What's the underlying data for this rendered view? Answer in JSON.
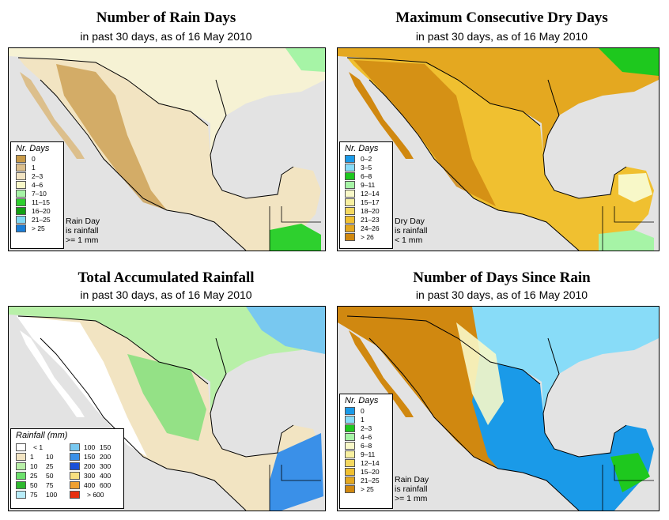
{
  "colors": {
    "sea": "#e3e3e3",
    "land_dry": "#c8a050",
    "border": "#000000"
  },
  "panels": {
    "rain_days": {
      "title": "Number of Rain Days",
      "subtitle": "in past 30 days, as of  16 May 2010",
      "legend_title": "Nr. Days",
      "classes": [
        {
          "label": "0",
          "color": "#c89a48"
        },
        {
          "label": "1",
          "color": "#dcbf8c"
        },
        {
          "label": "2–3",
          "color": "#f2e4c2"
        },
        {
          "label": "4–6",
          "color": "#f8f8c8"
        },
        {
          "label": "7–10",
          "color": "#a6f4a6"
        },
        {
          "label": "11–15",
          "color": "#2ed02e"
        },
        {
          "label": "16–20",
          "color": "#14a014"
        },
        {
          "label": "21–25",
          "color": "#80d8f4"
        },
        {
          "label": "> 25",
          "color": "#1a7ed8"
        }
      ],
      "note": [
        "Rain Day",
        "is rainfall",
        ">= 1 mm"
      ]
    },
    "dry_days": {
      "title": "Maximum Consecutive Dry Days",
      "subtitle": "in past 30 days, as of  16 May 2010",
      "legend_title": "Nr. Days",
      "classes": [
        {
          "label": "0–2",
          "color": "#1a9ae8"
        },
        {
          "label": "3–5",
          "color": "#88dcf8"
        },
        {
          "label": "6–8",
          "color": "#1ec81e"
        },
        {
          "label": "9–11",
          "color": "#a6f4a6"
        },
        {
          "label": "12–14",
          "color": "#f8f8c8"
        },
        {
          "label": "15–17",
          "color": "#f8f0a0"
        },
        {
          "label": "18–20",
          "color": "#f4d860"
        },
        {
          "label": "21–23",
          "color": "#f0c030"
        },
        {
          "label": "24–26",
          "color": "#e4a820"
        },
        {
          "label": "> 26",
          "color": "#d08810"
        }
      ],
      "note": [
        "Dry Day",
        "is rainfall",
        "< 1 mm"
      ]
    },
    "rainfall": {
      "title": "Total Accumulated Rainfall",
      "subtitle": "in past 30 days, as of  16 May 2010",
      "legend_title": "Rainfall (mm)",
      "classes_left": [
        {
          "from": "",
          "to": "< 1",
          "color": "#ffffff"
        },
        {
          "from": "1",
          "to": "10",
          "color": "#f2e4c2"
        },
        {
          "from": "10",
          "to": "25",
          "color": "#b8f0a8"
        },
        {
          "from": "25",
          "to": "50",
          "color": "#6ce06c"
        },
        {
          "from": "50",
          "to": "75",
          "color": "#2eb82e"
        },
        {
          "from": "75",
          "to": "100",
          "color": "#b8ecf8"
        }
      ],
      "classes_right": [
        {
          "from": "100",
          "to": "150",
          "color": "#78c8f0"
        },
        {
          "from": "150",
          "to": "200",
          "color": "#3a90e8"
        },
        {
          "from": "200",
          "to": "300",
          "color": "#1a50d8"
        },
        {
          "from": "300",
          "to": "400",
          "color": "#f8e080"
        },
        {
          "from": "400",
          "to": "600",
          "color": "#f0a030"
        },
        {
          "from": "",
          "to": "> 600",
          "color": "#e83010"
        }
      ]
    },
    "since_rain": {
      "title": "Number of Days Since Rain",
      "subtitle": "in past 30 days, as of  16 May 2010",
      "legend_title": "Nr. Days",
      "classes": [
        {
          "label": "0",
          "color": "#1a9ae8"
        },
        {
          "label": "1",
          "color": "#88dcf8"
        },
        {
          "label": "2–3",
          "color": "#1ec81e"
        },
        {
          "label": "4–6",
          "color": "#a6f4a6"
        },
        {
          "label": "6–8",
          "color": "#f8f8c8"
        },
        {
          "label": "9–11",
          "color": "#f8f0a0"
        },
        {
          "label": "12–14",
          "color": "#f4d860"
        },
        {
          "label": "15–20",
          "color": "#f0c030"
        },
        {
          "label": "21–25",
          "color": "#e4a820"
        },
        {
          "label": "> 25",
          "color": "#d08810"
        }
      ],
      "note": [
        "Rain Day",
        "is rainfall",
        ">= 1 mm"
      ]
    }
  }
}
